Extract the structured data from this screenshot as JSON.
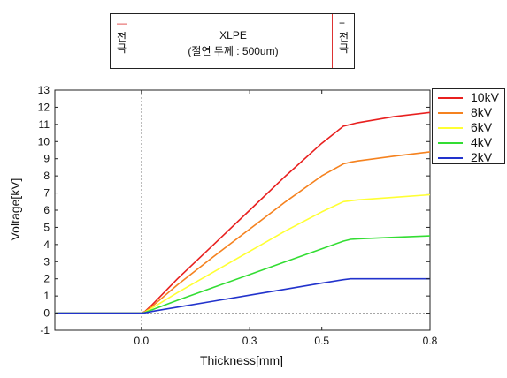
{
  "diagram": {
    "left_sign": "—",
    "left_text": "전극",
    "right_sign": "+",
    "right_text": "전극",
    "title": "XLPE",
    "subtitle": "(절연 두께 : 500um)"
  },
  "colors": {
    "electrode_line": "#dd3333",
    "series": [
      "#e8201f",
      "#f5821f",
      "#ffff33",
      "#33dd33",
      "#2233cc"
    ]
  },
  "chart_data": {
    "type": "line",
    "xlabel": "Thickness[mm]",
    "ylabel": "Voltage[kV]",
    "xlim": [
      -0.24,
      0.8
    ],
    "ylim": [
      -1,
      13
    ],
    "xticks": [
      "0.0",
      "0.3",
      "0.5",
      "0.8"
    ],
    "xtick_values": [
      0.0,
      0.3,
      0.5,
      0.8
    ],
    "yticks": [
      "-1",
      "0",
      "1",
      "2",
      "3",
      "4",
      "5",
      "6",
      "7",
      "8",
      "9",
      "10",
      "11",
      "12",
      "13"
    ],
    "ytick_values": [
      -1,
      0,
      1,
      2,
      3,
      4,
      5,
      6,
      7,
      8,
      9,
      10,
      11,
      12,
      13
    ],
    "legend_position": "top-right",
    "grid": false,
    "series": [
      {
        "name": "10kV",
        "color": "#e8201f",
        "x": [
          -0.24,
          0.0,
          0.01,
          0.03,
          0.1,
          0.2,
          0.3,
          0.4,
          0.5,
          0.56,
          0.58,
          0.6,
          0.7,
          0.8
        ],
        "y": [
          0,
          0,
          0.1,
          0.5,
          2.0,
          4.0,
          6.0,
          8.0,
          9.9,
          10.9,
          11.0,
          11.1,
          11.45,
          11.7
        ]
      },
      {
        "name": "8kV",
        "color": "#f5821f",
        "x": [
          -0.24,
          0.0,
          0.01,
          0.03,
          0.1,
          0.2,
          0.3,
          0.4,
          0.5,
          0.56,
          0.58,
          0.6,
          0.7,
          0.8
        ],
        "y": [
          0,
          0,
          0.08,
          0.4,
          1.65,
          3.3,
          4.9,
          6.5,
          8.0,
          8.7,
          8.8,
          8.87,
          9.15,
          9.4
        ]
      },
      {
        "name": "6kV",
        "color": "#ffff33",
        "x": [
          -0.24,
          0.0,
          0.01,
          0.03,
          0.1,
          0.2,
          0.3,
          0.4,
          0.5,
          0.56,
          0.58,
          0.6,
          0.7,
          0.8
        ],
        "y": [
          0,
          0,
          0.06,
          0.3,
          1.2,
          2.4,
          3.6,
          4.8,
          5.9,
          6.5,
          6.55,
          6.6,
          6.75,
          6.9
        ]
      },
      {
        "name": "4kV",
        "color": "#33dd33",
        "x": [
          -0.24,
          0.0,
          0.01,
          0.03,
          0.1,
          0.2,
          0.3,
          0.4,
          0.5,
          0.56,
          0.58,
          0.6,
          0.7,
          0.8
        ],
        "y": [
          0,
          0,
          0.04,
          0.2,
          0.75,
          1.5,
          2.25,
          3.0,
          3.75,
          4.2,
          4.3,
          4.33,
          4.42,
          4.5
        ]
      },
      {
        "name": "2kV",
        "color": "#2233cc",
        "x": [
          -0.24,
          0.0,
          0.01,
          0.03,
          0.1,
          0.2,
          0.3,
          0.4,
          0.5,
          0.56,
          0.58,
          0.6,
          0.7,
          0.8
        ],
        "y": [
          0,
          0,
          0.02,
          0.1,
          0.35,
          0.7,
          1.05,
          1.4,
          1.75,
          1.95,
          2.0,
          2.0,
          2.0,
          2.0
        ]
      }
    ]
  }
}
